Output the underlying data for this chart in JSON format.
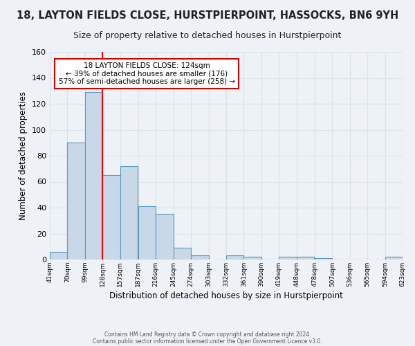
{
  "title": "18, LAYTON FIELDS CLOSE, HURSTPIERPOINT, HASSOCKS, BN6 9YH",
  "subtitle": "Size of property relative to detached houses in Hurstpierpoint",
  "xlabel": "Distribution of detached houses by size in Hurstpierpoint",
  "ylabel": "Number of detached properties",
  "bin_labels": [
    "41sqm",
    "70sqm",
    "99sqm",
    "128sqm",
    "157sqm",
    "187sqm",
    "216sqm",
    "245sqm",
    "274sqm",
    "303sqm",
    "332sqm",
    "361sqm",
    "390sqm",
    "419sqm",
    "448sqm",
    "478sqm",
    "507sqm",
    "536sqm",
    "565sqm",
    "594sqm",
    "623sqm"
  ],
  "bin_edges": [
    41,
    70,
    99,
    128,
    157,
    187,
    216,
    245,
    274,
    303,
    332,
    361,
    390,
    419,
    448,
    478,
    507,
    536,
    565,
    594,
    623
  ],
  "bar_heights": [
    6,
    90,
    129,
    65,
    72,
    41,
    35,
    9,
    3,
    0,
    3,
    2,
    0,
    2,
    2,
    1,
    0,
    0,
    0,
    2
  ],
  "bar_color": "#c8d8e8",
  "bar_edge_color": "#5a9abf",
  "red_line_x": 128,
  "ylim": [
    0,
    160
  ],
  "yticks": [
    0,
    20,
    40,
    60,
    80,
    100,
    120,
    140,
    160
  ],
  "annotation_text": "18 LAYTON FIELDS CLOSE: 124sqm\n← 39% of detached houses are smaller (176)\n57% of semi-detached houses are larger (258) →",
  "annotation_box_edge": "#cc0000",
  "footer1": "Contains HM Land Registry data © Crown copyright and database right 2024.",
  "footer2": "Contains public sector information licensed under the Open Government Licence v3.0.",
  "bg_color": "#eef2f7",
  "grid_color": "#d8e4f0",
  "title_fontsize": 10.5,
  "subtitle_fontsize": 9
}
